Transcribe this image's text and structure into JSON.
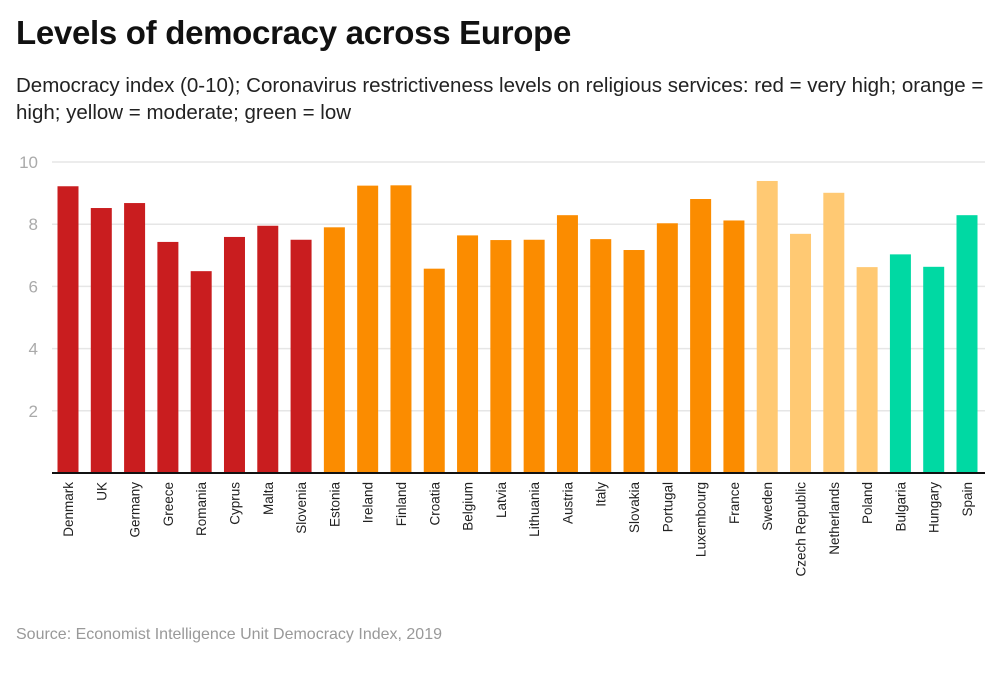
{
  "chart_data": {
    "type": "bar",
    "title": "Levels of democracy across Europe",
    "subtitle": "Democracy index (0-10); Coronavirus restrictiveness levels on religious services: red = very high; orange = high; yellow = moderate; green = low",
    "source": "Source: Economist Intelligence Unit Democracy Index, 2019",
    "xlabel": "",
    "ylabel": "",
    "ylim": [
      0,
      10
    ],
    "yticks": [
      2,
      4,
      6,
      8,
      10
    ],
    "grid": true,
    "colors": {
      "very high": "#c91d1f",
      "high": "#fb8c00",
      "moderate": "#ffc973",
      "low": "#00d9a3"
    },
    "categories": [
      "Denmark",
      "UK",
      "Germany",
      "Greece",
      "Romania",
      "Cyprus",
      "Malta",
      "Slovenia",
      "Estonia",
      "Ireland",
      "Finland",
      "Croatia",
      "Belgium",
      "Latvia",
      "Lithuania",
      "Austria",
      "Italy",
      "Slovakia",
      "Portugal",
      "Luxembourg",
      "France",
      "Sweden",
      "Czech Republic",
      "Netherlands",
      "Poland",
      "Bulgaria",
      "Hungary",
      "Spain"
    ],
    "values": [
      9.22,
      8.52,
      8.68,
      7.43,
      6.49,
      7.59,
      7.95,
      7.5,
      7.9,
      9.24,
      9.25,
      6.57,
      7.64,
      7.49,
      7.5,
      8.29,
      7.52,
      7.17,
      8.03,
      8.81,
      8.12,
      9.39,
      7.69,
      9.01,
      6.62,
      7.03,
      6.63,
      8.29
    ],
    "levels": [
      "very high",
      "very high",
      "very high",
      "very high",
      "very high",
      "very high",
      "very high",
      "very high",
      "high",
      "high",
      "high",
      "high",
      "high",
      "high",
      "high",
      "high",
      "high",
      "high",
      "high",
      "high",
      "high",
      "moderate",
      "moderate",
      "moderate",
      "moderate",
      "low",
      "low",
      "low"
    ]
  }
}
